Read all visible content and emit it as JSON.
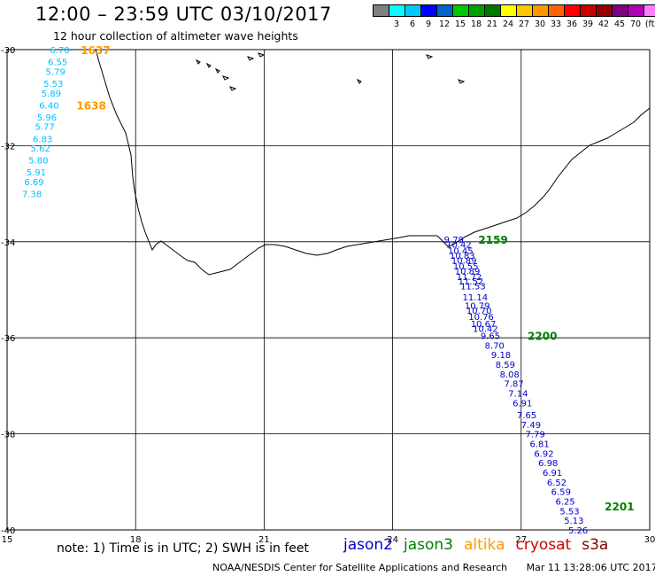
{
  "title": "12:00 – 23:59 UTC 03/10/2017",
  "subtitle": "12 hour collection of altimeter wave heights",
  "colorbar": {
    "colors": [
      "#808080",
      "#00ffff",
      "#00c8ff",
      "#0000ff",
      "#0064c8",
      "#00c800",
      "#00a000",
      "#007800",
      "#ffff00",
      "#ffc800",
      "#ff9600",
      "#ff6400",
      "#ff0000",
      "#c80000",
      "#960000",
      "#800080",
      "#b400b4",
      "#ff80ff",
      "#000000"
    ],
    "labels": [
      "3",
      "6",
      "9",
      "12",
      "15",
      "18",
      "21",
      "24",
      "27",
      "30",
      "33",
      "36",
      "39",
      "42",
      "45",
      "70",
      "(ft)"
    ]
  },
  "axes": {
    "lon_ticks": [
      "15",
      "18",
      "21",
      "24",
      "27",
      "30"
    ],
    "lat_ticks": [
      "-30",
      "-32",
      "-34",
      "-36",
      "-38",
      "-40"
    ]
  },
  "tracks": [
    {
      "satellite": "altika",
      "text_color": "#00bfff",
      "time_color": "#ff9900",
      "times": [
        {
          "label": "1637",
          "lon": 16.72,
          "lat": -30.0
        },
        {
          "label": "1638",
          "lon": 16.62,
          "lat": -31.15
        }
      ],
      "points": [
        {
          "lon": 16.0,
          "lat": -30.0,
          "swh": "6.70"
        },
        {
          "lon": 15.95,
          "lat": -30.25,
          "swh": "6.55"
        },
        {
          "lon": 15.9,
          "lat": -30.45,
          "swh": "5.79"
        },
        {
          "lon": 15.85,
          "lat": -30.7,
          "swh": "5.53"
        },
        {
          "lon": 15.8,
          "lat": -30.9,
          "swh": "5.89"
        },
        {
          "lon": 15.75,
          "lat": -31.15,
          "swh": "6.40"
        },
        {
          "lon": 15.7,
          "lat": -31.4,
          "swh": "5.96"
        },
        {
          "lon": 15.65,
          "lat": -31.6,
          "swh": "5.77"
        },
        {
          "lon": 15.6,
          "lat": -31.85,
          "swh": "6.83"
        },
        {
          "lon": 15.55,
          "lat": -32.05,
          "swh": "5.62"
        },
        {
          "lon": 15.5,
          "lat": -32.3,
          "swh": "5.80"
        },
        {
          "lon": 15.45,
          "lat": -32.55,
          "swh": "5.91"
        },
        {
          "lon": 15.4,
          "lat": -32.75,
          "swh": "6.69"
        },
        {
          "lon": 15.35,
          "lat": -33.0,
          "swh": "7.38"
        }
      ]
    },
    {
      "satellite": "jason3",
      "text_color": "#0000cc",
      "time_color": "#008000",
      "times": [
        {
          "label": "2159",
          "lon": 26.0,
          "lat": -33.95
        },
        {
          "label": "2200",
          "lon": 27.15,
          "lat": -35.95
        },
        {
          "label": "2201",
          "lon": 28.95,
          "lat": -39.5
        }
      ],
      "points": [
        {
          "lon": 25.2,
          "lat": -33.95,
          "swh": "9.79"
        },
        {
          "lon": 25.25,
          "lat": -34.05,
          "swh": "10.42"
        },
        {
          "lon": 25.29,
          "lat": -34.18,
          "swh": "10.45"
        },
        {
          "lon": 25.33,
          "lat": -34.28,
          "swh": "10.83"
        },
        {
          "lon": 25.37,
          "lat": -34.38,
          "swh": "10.89"
        },
        {
          "lon": 25.41,
          "lat": -34.5,
          "swh": "10.55"
        },
        {
          "lon": 25.45,
          "lat": -34.6,
          "swh": "10.89"
        },
        {
          "lon": 25.49,
          "lat": -34.72,
          "swh": "11.72"
        },
        {
          "lon": 25.53,
          "lat": -34.82,
          "swh": "11.52"
        },
        {
          "lon": 25.58,
          "lat": -34.92,
          "swh": "11.53"
        },
        {
          "lon": 25.63,
          "lat": -35.15,
          "swh": "11.14"
        },
        {
          "lon": 25.68,
          "lat": -35.32,
          "swh": "10.79"
        },
        {
          "lon": 25.72,
          "lat": -35.42,
          "swh": "10.70"
        },
        {
          "lon": 25.77,
          "lat": -35.55,
          "swh": "10.76"
        },
        {
          "lon": 25.82,
          "lat": -35.7,
          "swh": "10.67"
        },
        {
          "lon": 25.87,
          "lat": -35.8,
          "swh": "10.42"
        },
        {
          "lon": 26.05,
          "lat": -35.95,
          "swh": "9.65"
        },
        {
          "lon": 26.15,
          "lat": -36.15,
          "swh": "8.70"
        },
        {
          "lon": 26.3,
          "lat": -36.35,
          "swh": "9.18"
        },
        {
          "lon": 26.4,
          "lat": -36.55,
          "swh": "8.59"
        },
        {
          "lon": 26.5,
          "lat": -36.75,
          "swh": "8.08"
        },
        {
          "lon": 26.6,
          "lat": -36.95,
          "swh": "7.87"
        },
        {
          "lon": 26.7,
          "lat": -37.15,
          "swh": "7.14"
        },
        {
          "lon": 26.8,
          "lat": -37.35,
          "swh": "6.91"
        },
        {
          "lon": 26.9,
          "lat": -37.6,
          "swh": "7.65"
        },
        {
          "lon": 27.0,
          "lat": -37.8,
          "swh": "7.49"
        },
        {
          "lon": 27.1,
          "lat": -38.0,
          "swh": "7.79"
        },
        {
          "lon": 27.2,
          "lat": -38.2,
          "swh": "6.81"
        },
        {
          "lon": 27.3,
          "lat": -38.4,
          "swh": "6.92"
        },
        {
          "lon": 27.4,
          "lat": -38.6,
          "swh": "6.98"
        },
        {
          "lon": 27.5,
          "lat": -38.8,
          "swh": "6.91"
        },
        {
          "lon": 27.6,
          "lat": -39.0,
          "swh": "6.52"
        },
        {
          "lon": 27.7,
          "lat": -39.2,
          "swh": "6.59"
        },
        {
          "lon": 27.8,
          "lat": -39.4,
          "swh": "6.25"
        },
        {
          "lon": 27.9,
          "lat": -39.6,
          "swh": "5.53"
        },
        {
          "lon": 28.0,
          "lat": -39.8,
          "swh": "5.13"
        },
        {
          "lon": 28.1,
          "lat": -40.0,
          "swh": "5.26"
        }
      ]
    }
  ],
  "note": "note: 1) Time is in UTC; 2) SWH is in feet",
  "satellites": [
    {
      "name": "jason2",
      "color": "#0000cc"
    },
    {
      "name": "jason3",
      "color": "#008000"
    },
    {
      "name": "altika",
      "color": "#ff9900"
    },
    {
      "name": "cryosat",
      "color": "#cc0000"
    },
    {
      "name": "s3a",
      "color": "#800000"
    }
  ],
  "credit": "NOAA/NESDIS Center for Satellite Applications and Research",
  "timestamp": "Mar 11 13:28:06 UTC 2017"
}
